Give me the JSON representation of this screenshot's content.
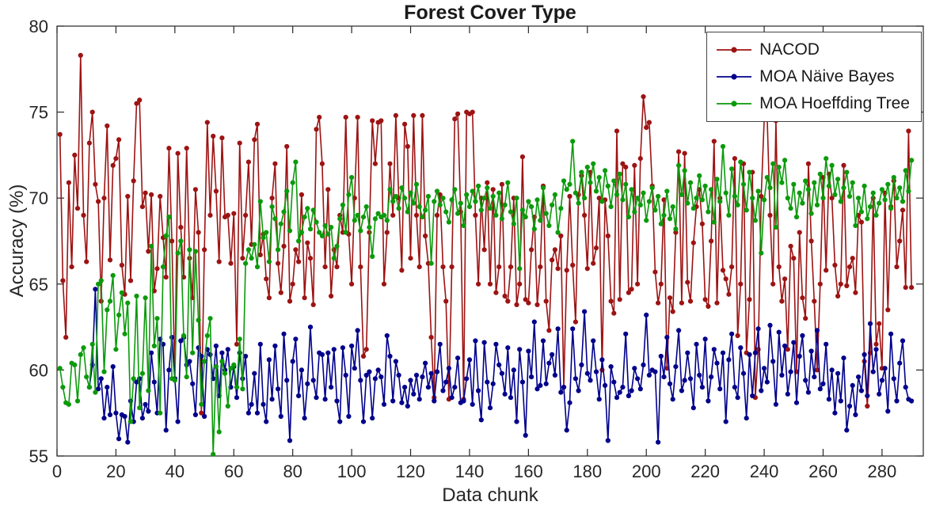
{
  "chart_data": {
    "type": "line",
    "title": "Forest Cover Type",
    "xlabel": "Data chunk",
    "ylabel": "Accuracy (%)",
    "xlim": [
      0,
      294
    ],
    "ylim": [
      55,
      80
    ],
    "xticks": [
      0,
      20,
      40,
      60,
      80,
      100,
      120,
      140,
      160,
      180,
      200,
      220,
      240,
      260,
      280
    ],
    "yticks": [
      55,
      60,
      65,
      70,
      75,
      80
    ],
    "grid": false,
    "legend_position": "top-right",
    "series": [
      {
        "name": "NACOD",
        "color": "#9d1313",
        "marker": "circle",
        "values": [
          73.7,
          65.2,
          61.9,
          70.9,
          66.0,
          72.5,
          69.4,
          78.3,
          69.0,
          66.3,
          73.2,
          75.0,
          70.8,
          69.8,
          64.0,
          70.0,
          74.2,
          66.4,
          71.9,
          72.3,
          73.4,
          66.1,
          64.4,
          70.1,
          65.2,
          71.0,
          75.5,
          75.7,
          69.5,
          70.3,
          66.9,
          70.2,
          64.6,
          65.9,
          70.1,
          67.7,
          65.4,
          72.9,
          67.5,
          59.5,
          72.6,
          68.3,
          65.4,
          72.9,
          66.5,
          64.2,
          70.5,
          68.0,
          57.5,
          67.0,
          74.4,
          69.0,
          73.6,
          70.4,
          66.3,
          73.5,
          68.9,
          69.0,
          66.2,
          69.1,
          61.5,
          73.2,
          66.5,
          69.0,
          72.1,
          67.3,
          73.4,
          74.3,
          66.7,
          67.9,
          65.3,
          64.2,
          70.0,
          72.0,
          66.2,
          64.5,
          67.2,
          73.0,
          64.0,
          65.0,
          67.0,
          66.3,
          70.2,
          64.2,
          67.4,
          66.5,
          63.8,
          74.0,
          74.7,
          72.0,
          66.0,
          70.5,
          64.3,
          67.0,
          66.0,
          69.0,
          68.0,
          74.7,
          67.9,
          65.0,
          70.0,
          74.7,
          66.0,
          60.8,
          61.2,
          68.0,
          74.5,
          72.0,
          74.4,
          74.5,
          65.0,
          68.0,
          72.0,
          69.0,
          74.8,
          70.0,
          65.8,
          74.3,
          73.0,
          66.5,
          74.8,
          69.0,
          66.0,
          74.8,
          67.8,
          66.2,
          61.9,
          58.4,
          69.0,
          70.2,
          66.0,
          64.0,
          58.3,
          66.0,
          74.6,
          74.9,
          69.2,
          58.3,
          75.0,
          74.9,
          75.0,
          69.0,
          65.0,
          70.0,
          67.0,
          70.9,
          65.0,
          70.5,
          64.5,
          66.0,
          70.8,
          64.3,
          64.0,
          66.0,
          70.0,
          63.8,
          65.0,
          72.4,
          64.1,
          63.9,
          67.0,
          68.9,
          63.8,
          66.0,
          70.7,
          64.0,
          62.3,
          66.4,
          67.0,
          65.9,
          67.8,
          59.0,
          65.8,
          70.1,
          66.1,
          62.8,
          70.2,
          71.3,
          69.0,
          65.9,
          71.5,
          66.2,
          67.1,
          70.0,
          60.0,
          69.9,
          67.8,
          64.0,
          63.3,
          73.9,
          64.1,
          72.0,
          71.8,
          64.5,
          64.7,
          71.9,
          65.0,
          72.3,
          75.9,
          74.1,
          74.4,
          70.7,
          65.7,
          63.9,
          65.0,
          69.9,
          60.1,
          64.2,
          63.4,
          68.0,
          72.7,
          63.9,
          72.6,
          65.1,
          64.0,
          67.4,
          69.5,
          70.5,
          68.5,
          64.1,
          63.7,
          67.5,
          73.3,
          63.9,
          70.0,
          65.8,
          65.3,
          64.4,
          66.0,
          72.3,
          62.0,
          65.0,
          72.0,
          61.0,
          64.1,
          71.5,
          58.4,
          61.2,
          70.1,
          74.6,
          74.8,
          69.0,
          65.0,
          74.5,
          66.0,
          64.0,
          65.3,
          61.2,
          67.2,
          66.5,
          59.9,
          68.0,
          64.2,
          63.0,
          72.0,
          67.5,
          64.0,
          60.0,
          65.0,
          71.2,
          65.8,
          71.4,
          70.0,
          66.1,
          64.3,
          65.0,
          71.9,
          64.9,
          66.0,
          66.5,
          64.5,
          69.0,
          68.6,
          60.5,
          57.9,
          61.0,
          70.0,
          61.5,
          62.7,
          60.1,
          70.3,
          63.5,
          69.5,
          71.0,
          66.0,
          67.5,
          69.3,
          64.8,
          73.9,
          64.8
        ]
      },
      {
        "name": "MOA Näive Bayes",
        "color": "#00008b",
        "marker": "circle",
        "values": [
          null,
          null,
          null,
          null,
          null,
          null,
          null,
          null,
          null,
          null,
          59.0,
          60.3,
          64.7,
          58.9,
          59.5,
          57.2,
          59.0,
          57.4,
          60.2,
          57.5,
          56.0,
          57.4,
          57.3,
          55.8,
          58.2,
          57.0,
          59.3,
          59.5,
          57.2,
          58.0,
          57.6,
          61.0,
          59.3,
          57.5,
          61.8,
          61.5,
          56.5,
          60.0,
          61.9,
          59.5,
          57.0,
          61.7,
          61.9,
          60.3,
          60.5,
          59.2,
          57.4,
          61.3,
          60.8,
          57.3,
          61.2,
          60.9,
          59.5,
          61.4,
          58.5,
          61.0,
          60.0,
          61.2,
          59.0,
          60.2,
          58.4,
          61.0,
          59.5,
          60.8,
          57.5,
          58.0,
          59.8,
          57.5,
          61.5,
          58.0,
          57.0,
          60.6,
          58.3,
          61.4,
          58.9,
          57.3,
          62.1,
          59.4,
          55.9,
          60.5,
          61.8,
          58.5,
          60.0,
          57.2,
          59.2,
          62.5,
          59.4,
          58.4,
          61.0,
          60.9,
          58.3,
          61.0,
          59.0,
          61.2,
          58.2,
          57.0,
          61.3,
          59.7,
          57.3,
          61.4,
          60.1,
          62.3,
          59.4,
          57.0,
          59.7,
          59.9,
          57.2,
          59.5,
          60.0,
          59.6,
          58.0,
          62.0,
          60.8,
          58.2,
          60.5,
          59.7,
          58.1,
          59.0,
          57.9,
          59.4,
          58.6,
          59.7,
          58.3,
          59.6,
          60.4,
          59.0,
          59.8,
          58.2,
          59.9,
          61.5,
          58.8,
          59.3,
          60.1,
          58.4,
          59.0,
          60.7,
          58.1,
          58.2,
          59.5,
          60.6,
          58.0,
          61.7,
          58.8,
          57.1,
          61.6,
          59.3,
          57.8,
          59.2,
          61.5,
          60.3,
          59.8,
          58.6,
          61.3,
          58.4,
          60.0,
          57.0,
          61.2,
          59.3,
          56.2,
          61.1,
          59.6,
          62.8,
          58.9,
          59.1,
          61.7,
          59.2,
          60.4,
          60.9,
          59.7,
          62.4,
          58.7,
          59.0,
          56.5,
          58.1,
          62.4,
          59.5,
          58.8,
          60.3,
          63.4,
          59.8,
          59.4,
          61.7,
          59.9,
          58.3,
          60.6,
          59.1,
          55.9,
          60.2,
          59.3,
          58.4,
          58.7,
          59.0,
          62.1,
          58.5,
          58.8,
          60.1,
          59.5,
          58.9,
          60.3,
          63.2,
          59.7,
          60.0,
          59.9,
          55.8,
          60.8,
          59.6,
          61.9,
          59.2,
          58.3,
          60.2,
          62.3,
          58.8,
          59.4,
          61.0,
          59.5,
          57.8,
          61.5,
          59.7,
          59.0,
          61.8,
          58.2,
          59.6,
          61.2,
          60.4,
          58.9,
          61.0,
          57.0,
          60.6,
          62.1,
          59.0,
          58.4,
          61.3,
          59.8,
          57.2,
          60.9,
          58.5,
          61.0,
          62.4,
          58.8,
          60.1,
          59.3,
          62.6,
          60.5,
          58.0,
          62.2,
          59.7,
          61.4,
          58.6,
          59.9,
          61.6,
          58.1,
          60.8,
          62.0,
          59.4,
          58.7,
          61.1,
          59.6,
          62.3,
          58.9,
          59.2,
          61.5,
          58.3,
          60.0,
          57.5,
          59.8,
          58.2,
          60.7,
          56.5,
          57.9,
          59.1,
          57.4,
          59.6,
          58.8,
          60.9,
          58.5,
          62.7,
          59.9,
          61.2,
          58.6,
          59.4,
          60.1,
          57.6,
          62.1,
          59.5,
          58.2,
          60.4,
          61.7,
          59.0,
          58.3,
          58.2
        ]
      },
      {
        "name": "MOA Hoeffding Tree",
        "color": "#0b9a0b",
        "marker": "circle",
        "values": [
          60.1,
          59.0,
          58.1,
          58.0,
          60.4,
          60.3,
          58.2,
          60.9,
          61.3,
          59.6,
          59.0,
          61.5,
          58.7,
          65.0,
          65.2,
          59.9,
          63.5,
          64.0,
          65.5,
          61.2,
          63.2,
          64.5,
          62.1,
          63.9,
          57.0,
          59.5,
          64.3,
          57.8,
          59.8,
          64.2,
          58.8,
          67.2,
          61.4,
          63.0,
          57.5,
          66.0,
          67.8,
          68.9,
          59.5,
          59.4,
          66.8,
          67.5,
          62.0,
          59.6,
          67.0,
          61.0,
          66.9,
          62.9,
          58.0,
          60.5,
          62.0,
          63.0,
          55.1,
          60.2,
          56.4,
          60.5,
          59.8,
          57.9,
          60.1,
          60.3,
          59.0,
          61.8,
          58.9,
          66.2,
          67.0,
          66.5,
          67.3,
          66.0,
          69.8,
          67.7,
          68.0,
          66.3,
          69.5,
          68.8,
          67.0,
          68.5,
          69.2,
          70.4,
          68.1,
          70.9,
          72.1,
          67.5,
          68.0,
          68.9,
          69.4,
          68.2,
          69.3,
          68.6,
          68.0,
          67.8,
          68.4,
          67.9,
          68.3,
          66.5,
          67.2,
          68.8,
          69.6,
          68.0,
          70.2,
          71.2,
          68.7,
          69.0,
          68.1,
          68.9,
          69.5,
          68.3,
          66.6,
          68.8,
          69.1,
          68.9,
          69.0,
          68.7,
          70.5,
          69.8,
          70.1,
          69.4,
          70.6,
          70.0,
          69.2,
          70.3,
          69.7,
          70.8,
          69.5,
          68.9,
          69.3,
          70.1,
          66.2,
          69.8,
          70.4,
          69.6,
          70.0,
          69.2,
          68.6,
          69.9,
          70.5,
          69.1,
          69.7,
          68.4,
          70.2,
          69.5,
          70.4,
          69.8,
          70.7,
          69.3,
          70.0,
          70.6,
          69.4,
          70.1,
          69.0,
          70.3,
          68.8,
          69.6,
          70.9,
          69.2,
          68.5,
          70.0,
          65.9,
          69.3,
          68.9,
          69.8,
          69.5,
          68.2,
          69.9,
          68.7,
          70.6,
          69.1,
          68.4,
          69.6,
          70.2,
          68.0,
          69.4,
          71.0,
          70.5,
          70.8,
          73.3,
          70.3,
          69.7,
          71.5,
          70.0,
          71.8,
          70.9,
          72.0,
          70.4,
          71.2,
          69.8,
          71.6,
          70.7,
          69.5,
          71.0,
          70.2,
          71.4,
          69.9,
          70.8,
          68.9,
          70.5,
          69.2,
          70.0,
          69.6,
          70.3,
          68.7,
          69.8,
          70.6,
          69.3,
          70.1,
          68.5,
          69.0,
          70.4,
          68.8,
          69.5,
          68.2,
          71.9,
          70.2,
          71.6,
          69.7,
          70.9,
          69.4,
          70.0,
          71.3,
          69.9,
          70.7,
          69.2,
          70.5,
          68.6,
          71.1,
          69.8,
          73.0,
          70.3,
          69.0,
          71.7,
          70.1,
          69.6,
          72.1,
          70.8,
          69.3,
          71.5,
          70.0,
          68.7,
          70.4,
          66.8,
          69.9,
          71.2,
          70.6,
          72.0,
          68.3,
          71.8,
          70.9,
          72.2,
          70.0,
          69.4,
          70.8,
          68.9,
          70.3,
          69.7,
          71.0,
          70.5,
          69.1,
          70.9,
          69.6,
          71.4,
          70.0,
          72.3,
          70.7,
          71.9,
          70.2,
          71.1,
          69.8,
          70.6,
          71.5,
          70.1,
          70.9,
          68.4,
          70.0,
          69.2,
          70.7,
          68.8,
          69.5,
          70.3,
          69.0,
          69.7,
          70.5,
          69.9,
          70.8,
          69.4,
          71.2,
          70.0,
          70.6,
          69.8,
          71.6,
          70.4,
          72.2
        ]
      }
    ]
  }
}
